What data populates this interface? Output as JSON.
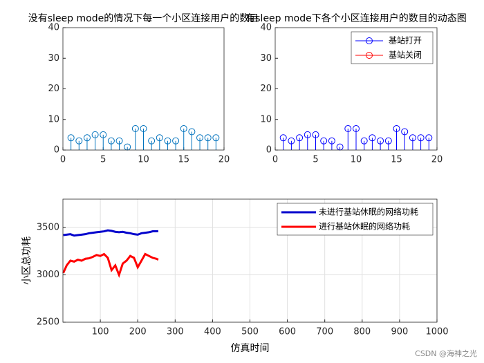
{
  "chart_data": [
    {
      "type": "stem",
      "title": "没有sleep mode的情况下每一个小区连接用户的数目",
      "x": [
        1,
        2,
        3,
        4,
        5,
        6,
        7,
        8,
        9,
        10,
        11,
        12,
        13,
        14,
        15,
        16,
        17,
        18,
        19
      ],
      "values": [
        4,
        3,
        4,
        5,
        5,
        3,
        3,
        1,
        7,
        7,
        3,
        4,
        3,
        3,
        7,
        6,
        4,
        4,
        4
      ],
      "color": "#0072bd",
      "xlim": [
        0,
        20
      ],
      "xticks": [
        0,
        5,
        10,
        15,
        20
      ],
      "ylim": [
        0,
        40
      ],
      "yticks": [
        0,
        10,
        20,
        30,
        40
      ],
      "grid": false
    },
    {
      "type": "stem",
      "title": "有sleep mode下各个小区连接用户的数目的动态图",
      "x": [
        1,
        2,
        3,
        4,
        5,
        6,
        7,
        8,
        9,
        10,
        11,
        12,
        13,
        14,
        15,
        16,
        17,
        18,
        19
      ],
      "series": [
        {
          "name": "基站打开",
          "color": "#0000ff",
          "values": [
            4,
            3,
            4,
            5,
            5,
            3,
            3,
            1,
            7,
            7,
            3,
            4,
            3,
            3,
            7,
            6,
            4,
            4,
            4
          ]
        },
        {
          "name": "基站关闭",
          "color": "#ff0000",
          "values": [
            null,
            null,
            null,
            null,
            null,
            null,
            null,
            null,
            null,
            null,
            null,
            null,
            null,
            null,
            null,
            null,
            null,
            null,
            null
          ]
        }
      ],
      "xlim": [
        0,
        20
      ],
      "xticks": [
        0,
        5,
        10,
        15,
        20
      ],
      "ylim": [
        0,
        40
      ],
      "yticks": [
        0,
        10,
        20,
        30,
        40
      ],
      "grid": false,
      "legend": "northeast"
    },
    {
      "type": "line",
      "xlabel": "仿真时间",
      "ylabel": "小区总功耗",
      "x": [
        1,
        10,
        20,
        30,
        40,
        50,
        60,
        70,
        80,
        90,
        100,
        110,
        120,
        130,
        140,
        150,
        160,
        170,
        180,
        190,
        200,
        210,
        220,
        230,
        240,
        250,
        255
      ],
      "series": [
        {
          "name": "未进行基站休眠的网络功耗",
          "color": "#0000cc",
          "values": [
            3420,
            3425,
            3430,
            3415,
            3420,
            3425,
            3430,
            3440,
            3445,
            3450,
            3455,
            3460,
            3470,
            3465,
            3455,
            3450,
            3455,
            3445,
            3440,
            3430,
            3425,
            3440,
            3445,
            3450,
            3460,
            3460,
            3462
          ]
        },
        {
          "name": "进行基站休眠的网络功耗",
          "color": "#ff0000",
          "values": [
            3020,
            3100,
            3150,
            3140,
            3160,
            3150,
            3170,
            3175,
            3190,
            3210,
            3200,
            3220,
            3180,
            3050,
            3100,
            3000,
            3120,
            3150,
            3200,
            3180,
            3080,
            3150,
            3220,
            3200,
            3180,
            3170,
            3160
          ]
        }
      ],
      "xlim": [
        0,
        1000
      ],
      "xticks": [
        100,
        200,
        300,
        400,
        500,
        600,
        700,
        800,
        900,
        1000
      ],
      "ylim": [
        2500,
        3800
      ],
      "yticks": [
        2500,
        3000,
        3500
      ],
      "grid": true,
      "legend": "northeast"
    }
  ],
  "watermark": "CSDN @海神之光"
}
